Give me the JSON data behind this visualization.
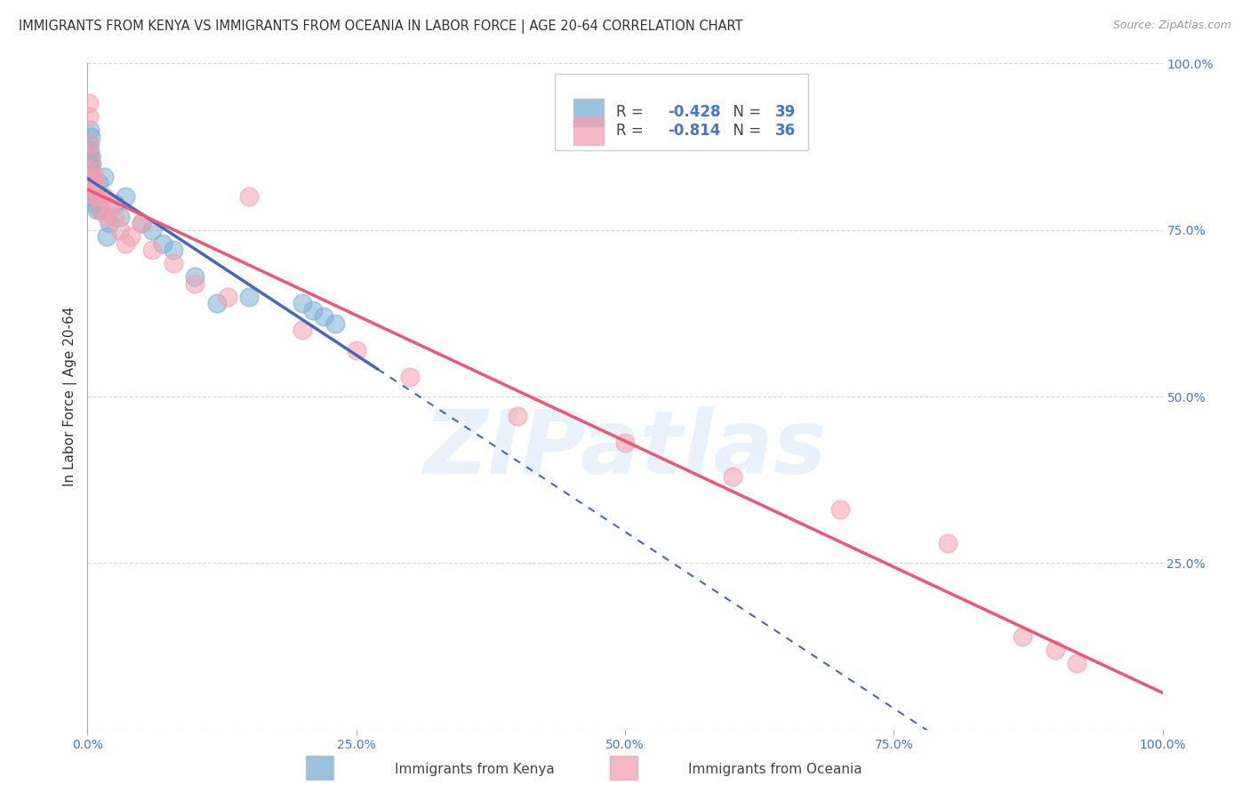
{
  "title": "IMMIGRANTS FROM KENYA VS IMMIGRANTS FROM OCEANIA IN LABOR FORCE | AGE 20-64 CORRELATION CHART",
  "source": "Source: ZipAtlas.com",
  "ylabel": "In Labor Force | Age 20-64",
  "xlim": [
    0.0,
    1.0
  ],
  "ylim": [
    0.0,
    1.0
  ],
  "xticks": [
    0.0,
    0.25,
    0.5,
    0.75,
    1.0
  ],
  "xtick_labels": [
    "0.0%",
    "25.0%",
    "50.0%",
    "75.0%",
    "100.0%"
  ],
  "yticks": [
    0.0,
    0.25,
    0.5,
    0.75,
    1.0
  ],
  "ytick_labels_right": [
    "",
    "25.0%",
    "50.0%",
    "75.0%",
    "100.0%"
  ],
  "kenya_color": "#7bafd4",
  "oceania_color": "#f4a0b0",
  "kenya_line_color": "#4466bb",
  "oceania_line_color": "#ee5577",
  "kenya_R": -0.428,
  "kenya_N": 39,
  "oceania_R": -0.814,
  "oceania_N": 36,
  "background_color": "#ffffff",
  "grid_color": "#cccccc",
  "kenya_x": [
    0.001,
    0.001,
    0.001,
    0.001,
    0.001,
    0.002,
    0.002,
    0.002,
    0.002,
    0.003,
    0.003,
    0.003,
    0.004,
    0.004,
    0.005,
    0.005,
    0.006,
    0.007,
    0.008,
    0.009,
    0.01,
    0.012,
    0.015,
    0.018,
    0.02,
    0.025,
    0.03,
    0.035,
    0.05,
    0.06,
    0.07,
    0.08,
    0.1,
    0.12,
    0.15,
    0.2,
    0.21,
    0.22,
    0.23
  ],
  "kenya_y": [
    0.88,
    0.86,
    0.84,
    0.82,
    0.8,
    0.9,
    0.87,
    0.85,
    0.83,
    0.89,
    0.86,
    0.84,
    0.85,
    0.83,
    0.82,
    0.8,
    0.81,
    0.79,
    0.8,
    0.78,
    0.82,
    0.78,
    0.83,
    0.74,
    0.76,
    0.79,
    0.77,
    0.8,
    0.76,
    0.75,
    0.73,
    0.72,
    0.68,
    0.64,
    0.65,
    0.64,
    0.63,
    0.62,
    0.61
  ],
  "oceania_x": [
    0.001,
    0.001,
    0.002,
    0.003,
    0.003,
    0.004,
    0.005,
    0.006,
    0.007,
    0.008,
    0.01,
    0.012,
    0.015,
    0.018,
    0.02,
    0.025,
    0.03,
    0.035,
    0.04,
    0.05,
    0.06,
    0.08,
    0.1,
    0.13,
    0.2,
    0.25,
    0.3,
    0.15,
    0.4,
    0.5,
    0.6,
    0.7,
    0.8,
    0.87,
    0.9,
    0.92
  ],
  "oceania_y": [
    0.94,
    0.92,
    0.88,
    0.86,
    0.84,
    0.83,
    0.82,
    0.83,
    0.8,
    0.81,
    0.8,
    0.78,
    0.8,
    0.77,
    0.79,
    0.77,
    0.75,
    0.73,
    0.74,
    0.76,
    0.72,
    0.7,
    0.67,
    0.65,
    0.6,
    0.57,
    0.53,
    0.8,
    0.47,
    0.43,
    0.38,
    0.33,
    0.28,
    0.14,
    0.12,
    0.1
  ],
  "kenya_line_solid_end": 0.27,
  "watermark_text": "ZIPatlas",
  "watermark_color": "#aaccee",
  "watermark_alpha": 0.25,
  "title_fontsize": 10.5,
  "axis_label_fontsize": 11,
  "tick_fontsize": 10,
  "legend_fontsize": 12
}
